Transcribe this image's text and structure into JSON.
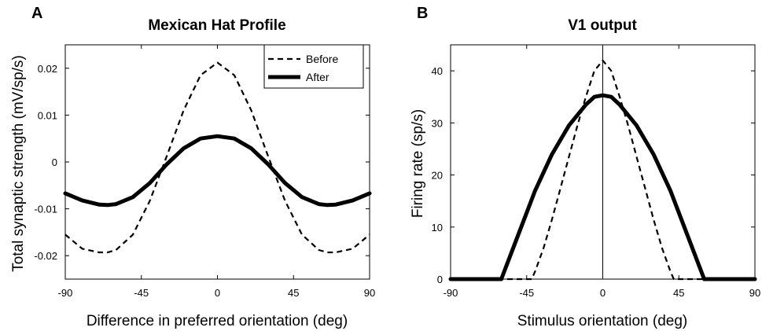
{
  "chart_data": [
    {
      "panel": "A",
      "type": "line",
      "title": "Mexican Hat Profile",
      "xlabel": "Difference in preferred orientation (deg)",
      "ylabel": "Total synaptic strength (mV/sp/s)",
      "xlim": [
        -90,
        90
      ],
      "ylim": [
        -0.025,
        0.025
      ],
      "xticks": [
        "-90",
        "-45",
        "0",
        "45",
        "90"
      ],
      "xtick_values": [
        -90,
        -45,
        0,
        45,
        90
      ],
      "yticks": [
        "-0.02",
        "-0.01",
        "0",
        "0.01",
        "0.02"
      ],
      "ytick_values": [
        -0.02,
        -0.01,
        0,
        0.01,
        0.02
      ],
      "grid": false,
      "legend_position": "top-right",
      "x": [
        -90,
        -80,
        -70,
        -65,
        -60,
        -50,
        -40,
        -30,
        -20,
        -10,
        0,
        10,
        20,
        30,
        40,
        50,
        60,
        65,
        70,
        80,
        90
      ],
      "series": [
        {
          "name": "Before",
          "style": "dashed",
          "values": [
            -0.0155,
            -0.0185,
            -0.0193,
            -0.0193,
            -0.0188,
            -0.0155,
            -0.0083,
            0.0012,
            0.011,
            0.0185,
            0.0212,
            0.0185,
            0.011,
            0.0012,
            -0.0083,
            -0.0155,
            -0.0188,
            -0.0193,
            -0.0193,
            -0.0185,
            -0.0155
          ]
        },
        {
          "name": "After",
          "style": "solid-thick",
          "values": [
            -0.0067,
            -0.0082,
            -0.0091,
            -0.0092,
            -0.009,
            -0.0075,
            -0.0045,
            -0.0005,
            0.0029,
            0.005,
            0.0055,
            0.005,
            0.0029,
            -0.0005,
            -0.0045,
            -0.0075,
            -0.009,
            -0.0092,
            -0.0091,
            -0.0082,
            -0.0067
          ]
        }
      ]
    },
    {
      "panel": "B",
      "type": "line",
      "title": "V1 output",
      "xlabel": "Stimulus orientation (deg)",
      "ylabel": "Firing rate (sp/s)",
      "xlim": [
        -90,
        90
      ],
      "ylim": [
        0,
        45
      ],
      "xticks": [
        "-90",
        "-45",
        "0",
        "45",
        "90"
      ],
      "xtick_values": [
        -90,
        -45,
        0,
        45,
        90
      ],
      "yticks": [
        "0",
        "10",
        "20",
        "30",
        "40"
      ],
      "ytick_values": [
        0,
        10,
        20,
        30,
        40
      ],
      "grid": false,
      "vertical_reference_line_x": 0,
      "series": [
        {
          "name": "Before",
          "style": "dashed",
          "x": [
            -90,
            -42,
            -40,
            -35,
            -30,
            -25,
            -20,
            -15,
            -10,
            -5,
            0,
            5,
            10,
            15,
            20,
            25,
            30,
            35,
            40,
            42,
            90
          ],
          "values": [
            0,
            0,
            1.5,
            6,
            11.5,
            17.5,
            23.5,
            29.5,
            35,
            40,
            42,
            40,
            35,
            29.5,
            23.5,
            17.5,
            11.5,
            6,
            1.5,
            0,
            0
          ]
        },
        {
          "name": "After",
          "style": "solid-thick",
          "x": [
            -90,
            -60,
            -50,
            -40,
            -30,
            -20,
            -10,
            -5,
            0,
            5,
            10,
            20,
            30,
            40,
            50,
            60,
            90
          ],
          "values": [
            0,
            0,
            8.5,
            17,
            24,
            29.5,
            33.5,
            35,
            35.3,
            35,
            33.5,
            29.5,
            24,
            17,
            8.5,
            0,
            0
          ]
        }
      ]
    }
  ]
}
